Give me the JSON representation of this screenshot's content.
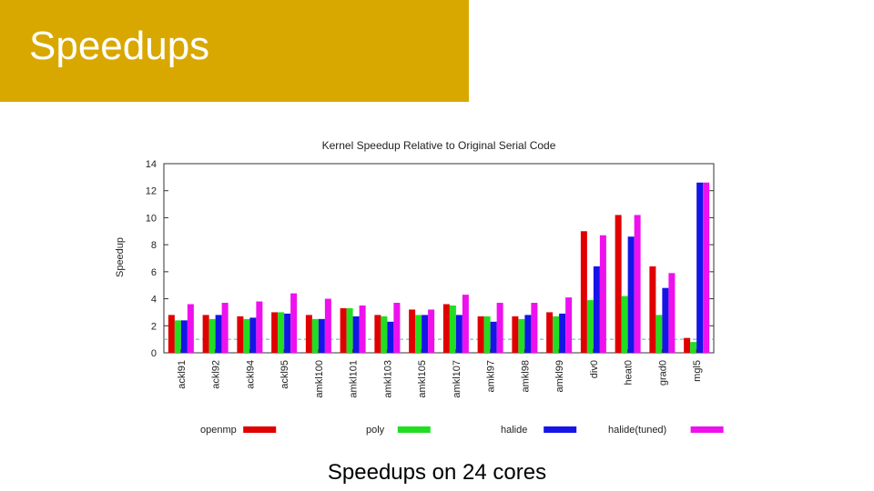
{
  "slide": {
    "title": "Speedups",
    "caption": "Speedups on 24 cores"
  },
  "colors": {
    "title_bg": "#d9a800",
    "openmp": "#e00000",
    "poly": "#22dd22",
    "halide": "#1515e8",
    "halide_tuned": "#ee11ee",
    "baseline": "#44bbbb"
  },
  "chart_data": {
    "type": "bar",
    "title": "Kernel Speedup Relative to Original Serial Code",
    "xlabel": "",
    "ylabel": "Speedup",
    "ylim": [
      0,
      14
    ],
    "yticks": [
      0,
      2,
      4,
      6,
      8,
      10,
      12,
      14
    ],
    "grid": false,
    "legend_position": "bottom",
    "baseline": 1,
    "categories": [
      "ackl91",
      "ackl92",
      "ackl94",
      "ackl95",
      "amkl100",
      "amkl101",
      "amkl103",
      "amkl105",
      "amkl107",
      "amkl97",
      "amkl98",
      "amkl99",
      "div0",
      "heat0",
      "grad0",
      "mgl5"
    ],
    "series": [
      {
        "name": "openmp",
        "values": [
          2.8,
          2.8,
          2.7,
          3.0,
          2.8,
          3.3,
          2.8,
          3.2,
          3.6,
          2.7,
          2.7,
          3.0,
          9.0,
          10.2,
          6.4,
          1.1
        ]
      },
      {
        "name": "poly",
        "values": [
          2.4,
          2.5,
          2.5,
          3.0,
          2.5,
          3.3,
          2.7,
          2.8,
          3.5,
          2.7,
          2.5,
          2.7,
          3.9,
          4.2,
          2.8,
          0.8
        ]
      },
      {
        "name": "halide",
        "values": [
          2.4,
          2.8,
          2.6,
          2.9,
          2.5,
          2.7,
          2.3,
          2.8,
          2.8,
          2.3,
          2.8,
          2.9,
          6.4,
          8.6,
          4.8,
          12.6
        ]
      },
      {
        "name": "halide(tuned)",
        "values": [
          3.6,
          3.7,
          3.8,
          4.4,
          4.0,
          3.5,
          3.7,
          3.2,
          4.3,
          3.7,
          3.7,
          4.1,
          8.7,
          10.2,
          5.9,
          12.6
        ]
      }
    ]
  }
}
